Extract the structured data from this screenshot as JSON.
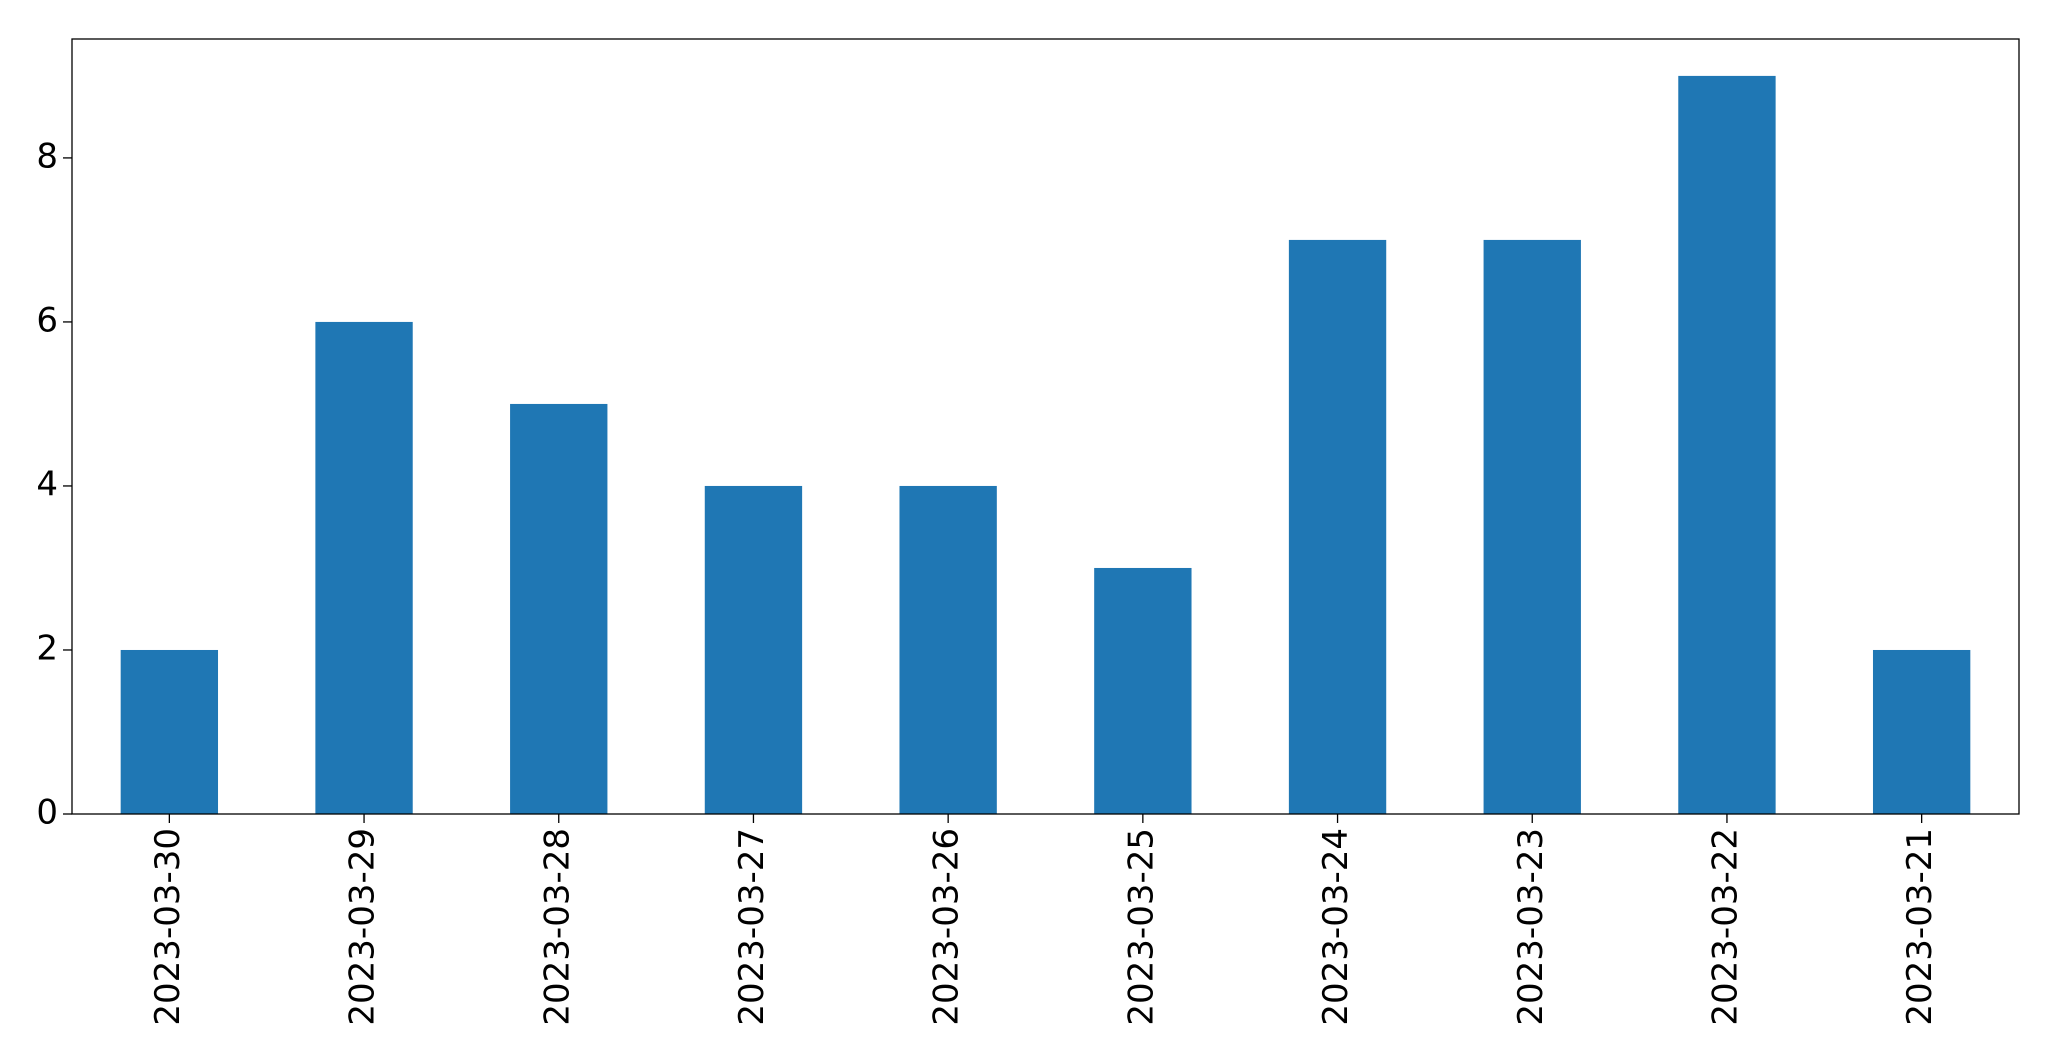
{
  "chart_data": {
    "type": "bar",
    "categories": [
      "2023-03-30",
      "2023-03-29",
      "2023-03-28",
      "2023-03-27",
      "2023-03-26",
      "2023-03-25",
      "2023-03-24",
      "2023-03-23",
      "2023-03-22",
      "2023-03-21"
    ],
    "values": [
      2,
      6,
      5,
      4,
      4,
      3,
      7,
      7,
      9,
      2
    ],
    "color": "#1f77b4",
    "ylim": [
      0,
      9.45
    ],
    "yticks": [
      0,
      2,
      4,
      6,
      8
    ],
    "grid": false
  }
}
